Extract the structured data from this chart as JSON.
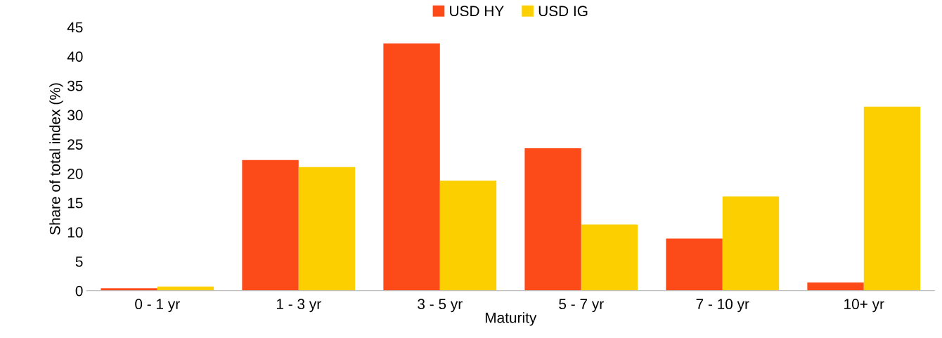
{
  "chart_data": {
    "type": "bar",
    "xlabel": "Maturity",
    "ylabel": "Share of total index (%)",
    "categories": [
      "0 - 1 yr",
      "1 - 3 yr",
      "3 - 5 yr",
      "5 - 7 yr",
      "7 - 10 yr",
      "10+ yr"
    ],
    "series": [
      {
        "name": "USD HY",
        "color": "#fc4a19",
        "values": [
          0.4,
          22.3,
          42.2,
          24.3,
          8.9,
          1.4
        ]
      },
      {
        "name": "USD IG",
        "color": "#fccf00",
        "values": [
          0.7,
          21.1,
          18.8,
          11.3,
          16.1,
          31.4
        ]
      }
    ],
    "ylim": [
      0,
      45
    ],
    "yticks": [
      0,
      5,
      10,
      15,
      20,
      25,
      30,
      35,
      40,
      45
    ],
    "grid": false,
    "legend": "top"
  }
}
